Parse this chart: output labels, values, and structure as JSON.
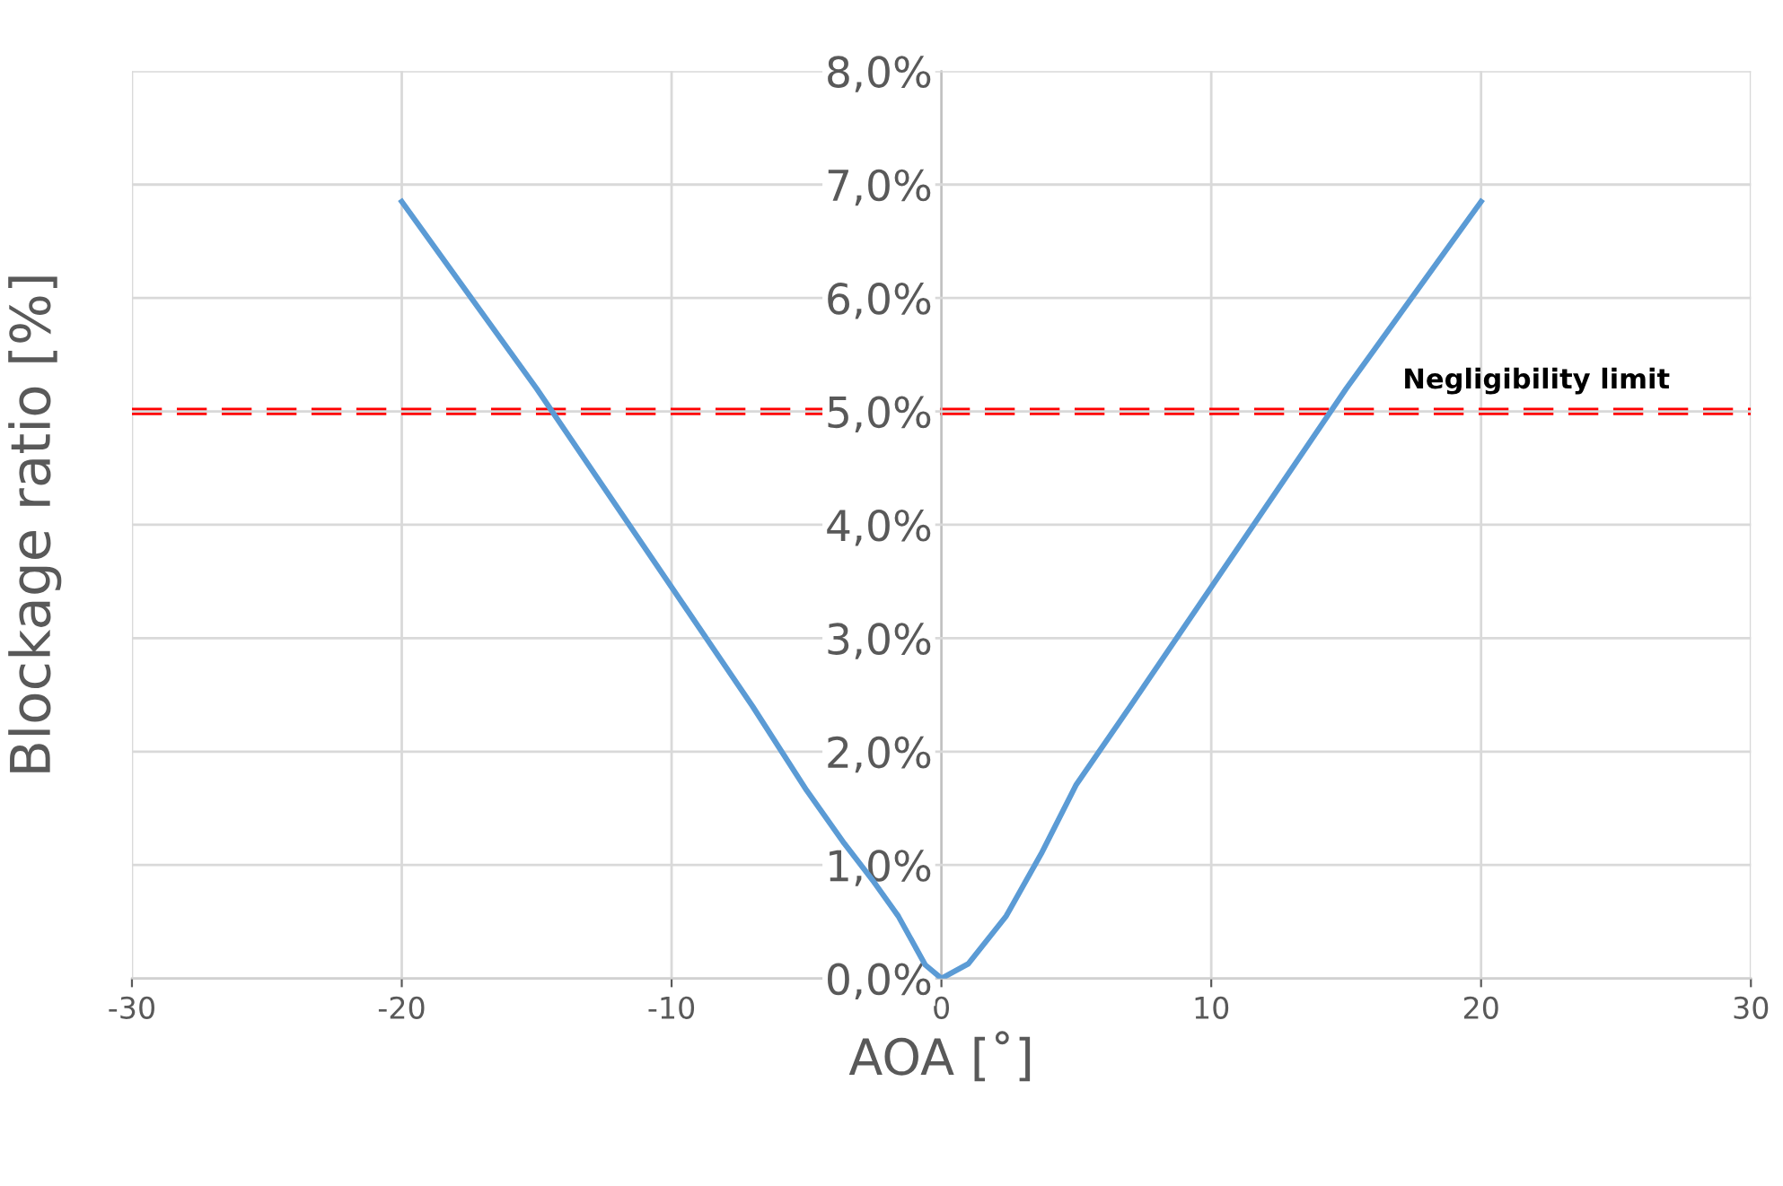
{
  "chart_data": {
    "type": "line",
    "xlabel": "AOA [˚]",
    "ylabel": "Blockage ratio [%]",
    "series": [
      {
        "color": "#5b9bd5",
        "x": [
          -20,
          -15,
          -10,
          -7,
          -5,
          -3.6,
          -2.5,
          -1.6,
          -0.6,
          0,
          1,
          2.4,
          3.7,
          5,
          7,
          10,
          15,
          20
        ],
        "values": [
          6.85,
          5.2,
          3.45,
          2.4,
          1.66,
          1.19,
          0.85,
          0.55,
          0.12,
          0,
          0.13,
          0.55,
          1.1,
          1.71,
          2.4,
          3.45,
          5.2,
          6.85
        ]
      }
    ],
    "xlim": [
      -30,
      30
    ],
    "xticks": [
      -30,
      -20,
      -10,
      0,
      10,
      20,
      30
    ],
    "ylim": [
      0,
      8
    ],
    "yticks": [
      {
        "value": 0,
        "label": "0,0%"
      },
      {
        "value": 1,
        "label": "1,0%"
      },
      {
        "value": 2,
        "label": "2,0%"
      },
      {
        "value": 3,
        "label": "3,0%"
      },
      {
        "value": 4,
        "label": "4,0%"
      },
      {
        "value": 5,
        "label": "5,0%"
      },
      {
        "value": 6,
        "label": "6,0%"
      },
      {
        "value": 7,
        "label": "7,0%"
      },
      {
        "value": 8,
        "label": "8,0%"
      }
    ],
    "ref_lines": [
      {
        "axis": "y",
        "value": 5,
        "label": "Negligibility limit",
        "color": "#ff0000",
        "line_style": "dashed"
      }
    ],
    "grid": true,
    "legend": false,
    "marker": "none",
    "line_style": "solid"
  }
}
